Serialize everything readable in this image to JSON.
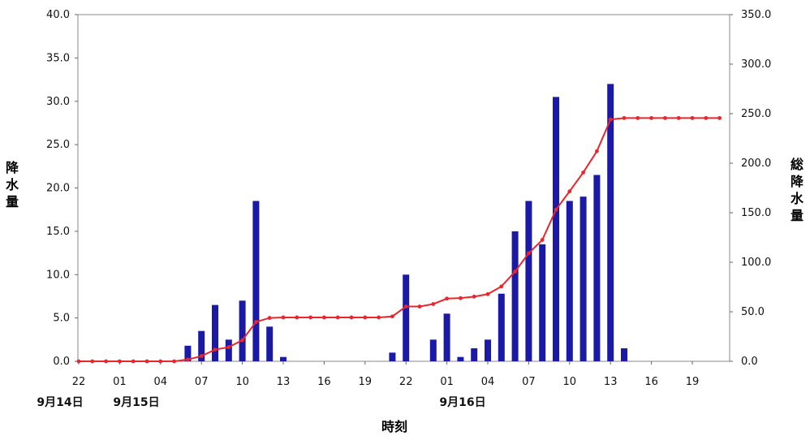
{
  "chart_data": {
    "type": "bar",
    "title": "",
    "xlabel": "時刻",
    "ylabel": "降水量",
    "y2label": "総降水量",
    "colors": {
      "bars": "#1a1aa6",
      "line": "#e8262c"
    },
    "ylim": [
      0,
      40
    ],
    "y2lim": [
      0,
      350
    ],
    "yticks": [
      "0.0",
      "5.0",
      "10.0",
      "15.0",
      "20.0",
      "25.0",
      "30.0",
      "35.0",
      "40.0"
    ],
    "y2ticks": [
      "0.0",
      "50.0",
      "100.0",
      "150.0",
      "200.0",
      "250.0",
      "300.0",
      "350.0"
    ],
    "xtick_labels": [
      "22",
      "01",
      "04",
      "07",
      "10",
      "13",
      "16",
      "19",
      "22",
      "01",
      "04",
      "07",
      "10",
      "13",
      "16",
      "19"
    ],
    "date_labels": [
      "9月14日",
      "9月15日",
      "9月16日"
    ],
    "x": [
      "22",
      "23",
      "00",
      "01",
      "02",
      "03",
      "04",
      "05",
      "06",
      "07",
      "08",
      "09",
      "10",
      "11",
      "12",
      "13",
      "14",
      "15",
      "16",
      "17",
      "18",
      "19",
      "20",
      "21",
      "22",
      "23",
      "00",
      "01",
      "02",
      "03",
      "04",
      "05",
      "06",
      "07",
      "08",
      "09",
      "10",
      "11",
      "12",
      "13",
      "14",
      "15",
      "16",
      "17",
      "18",
      "19",
      "20",
      "21"
    ],
    "series": [
      {
        "name": "降水量",
        "type": "bar",
        "axis": "left",
        "values": [
          0,
          0,
          0,
          0,
          0,
          0,
          0,
          0,
          1.8,
          3.5,
          6.5,
          2.5,
          7,
          18.5,
          4,
          0.5,
          0,
          0,
          0,
          0,
          0,
          0,
          0,
          1,
          10,
          0,
          2.5,
          5.5,
          0.5,
          1.5,
          2.5,
          7.8,
          15,
          18.5,
          13.5,
          30.5,
          18.5,
          19,
          21.5,
          32,
          1.5,
          0,
          0,
          0,
          0,
          0,
          0,
          0
        ]
      },
      {
        "name": "総降水量",
        "type": "line",
        "axis": "right",
        "values": [
          0,
          0,
          0,
          0,
          0,
          0,
          0,
          0,
          1.8,
          5.3,
          11.8,
          14.3,
          21.3,
          39.8,
          43.8,
          44.3,
          44.3,
          44.3,
          44.3,
          44.3,
          44.3,
          44.3,
          44.3,
          45.3,
          55.3,
          55.3,
          57.8,
          63.3,
          63.8,
          65.3,
          67.8,
          75.6,
          90.6,
          109.1,
          122.6,
          153.1,
          171.6,
          190.6,
          212.1,
          244.1,
          245.6,
          245.6,
          245.6,
          245.6,
          245.6,
          245.6,
          245.6,
          245.6
        ]
      }
    ]
  }
}
